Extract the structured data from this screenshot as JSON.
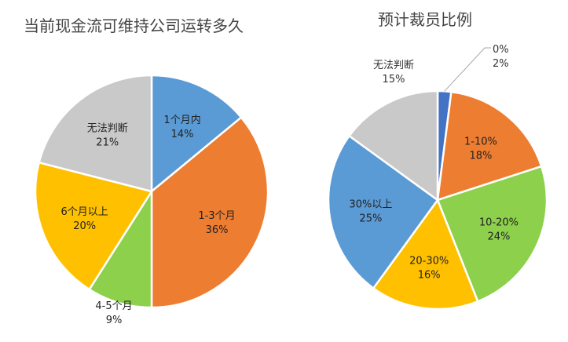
{
  "chart_data": [
    {
      "type": "pie",
      "title": "当前现金流可维持公司运转多久",
      "start_angle_deg": 0,
      "slices": [
        {
          "label": "1个月内",
          "value": 14,
          "pct": "14%",
          "color": "#5b9bd5",
          "text_color": "#222222"
        },
        {
          "label": "1-3个月",
          "value": 36,
          "pct": "36%",
          "color": "#ed7d31",
          "text_color": "#222222"
        },
        {
          "label": "4-5个月",
          "value": 9,
          "pct": "9%",
          "color": "#8dd04c",
          "text_color": "#222222",
          "outside": true
        },
        {
          "label": "6个月以上",
          "value": 20,
          "pct": "20%",
          "color": "#ffc000",
          "text_color": "#222222"
        },
        {
          "label": "无法判断",
          "value": 21,
          "pct": "21%",
          "color": "#c9c9c9",
          "text_color": "#222222"
        }
      ]
    },
    {
      "type": "pie",
      "title": "预计裁员比例",
      "start_angle_deg": 0,
      "slices": [
        {
          "label": "0%",
          "value": 2,
          "pct": "2%",
          "color": "#4472c4",
          "text_color": "#333333",
          "outside": true
        },
        {
          "label": "1-10%",
          "value": 18,
          "pct": "18%",
          "color": "#ed7d31",
          "text_color": "#222222"
        },
        {
          "label": "10-20%",
          "value": 24,
          "pct": "24%",
          "color": "#8dd04c",
          "text_color": "#222222"
        },
        {
          "label": "20-30%",
          "value": 16,
          "pct": "16%",
          "color": "#ffc000",
          "text_color": "#222222"
        },
        {
          "label": "30%以上",
          "value": 25,
          "pct": "25%",
          "color": "#5b9bd5",
          "text_color": "#222222"
        },
        {
          "label": "无法判断",
          "value": 15,
          "pct": "15%",
          "color": "#c9c9c9",
          "text_color": "#333333",
          "outside": true
        }
      ]
    }
  ]
}
